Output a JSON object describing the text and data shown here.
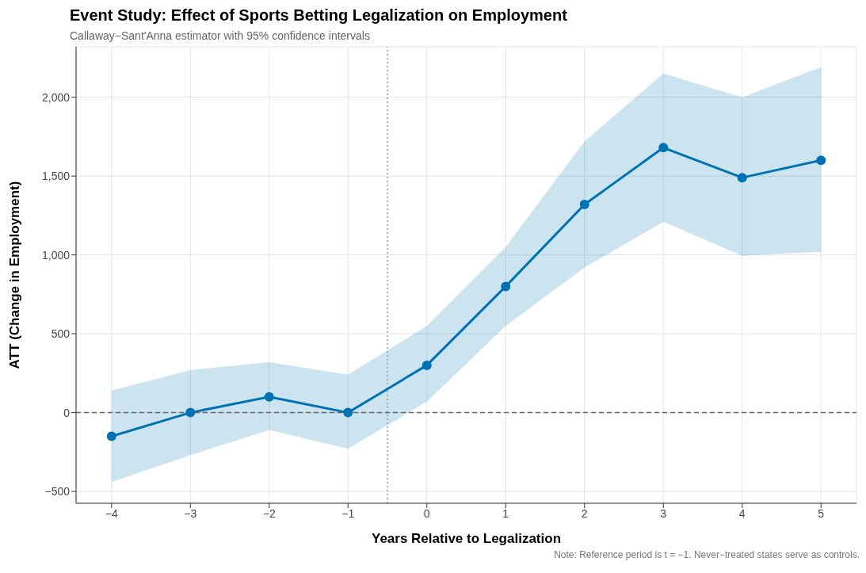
{
  "chart_data": {
    "type": "line",
    "title": "Event Study: Effect of Sports Betting Legalization on Employment",
    "subtitle": "Callaway−Sant'Anna estimator with 95% confidence intervals",
    "xlabel": "Years Relative to Legalization",
    "ylabel": "ATT (Change in Employment)",
    "annotations": [
      "Note: Reference period is t = −1. Never−treated states serve as controls."
    ],
    "x": [
      -4,
      -3,
      -2,
      -1,
      0,
      1,
      2,
      3,
      4,
      5
    ],
    "series": [
      {
        "color": "#0072b2",
        "values": [
          -150,
          0,
          100,
          0,
          300,
          800,
          1320,
          1680,
          1490,
          1600
        ],
        "lower": [
          -440,
          -270,
          -110,
          -230,
          70,
          550,
          920,
          1210,
          995,
          1020
        ],
        "upper": [
          140,
          270,
          320,
          240,
          550,
          1050,
          1720,
          2150,
          2000,
          2190
        ]
      }
    ],
    "xlim": [
      -4.45,
      5.45
    ],
    "xticks": [
      {
        "value": -4,
        "label": "−4"
      },
      {
        "value": -3,
        "label": "−3"
      },
      {
        "value": -2,
        "label": "−2"
      },
      {
        "value": -1,
        "label": "−1"
      },
      0,
      1,
      2,
      3,
      4,
      5
    ],
    "ylim": [
      -575,
      2320
    ],
    "yticks": [
      {
        "value": -500,
        "label": "−500"
      },
      0,
      500,
      {
        "value": 1000,
        "label": "1,000"
      },
      {
        "value": 1500,
        "label": "1,500"
      },
      {
        "value": 2000,
        "label": "2,000"
      }
    ],
    "ref_lines": [
      {
        "axis": "y",
        "value": 0,
        "color": "#666666",
        "line_style": "dashed"
      },
      {
        "axis": "x",
        "value": -0.5,
        "color": "#999999",
        "line_style": "dotted"
      }
    ],
    "grid": true,
    "marker": "circle",
    "line_style": "solid"
  }
}
